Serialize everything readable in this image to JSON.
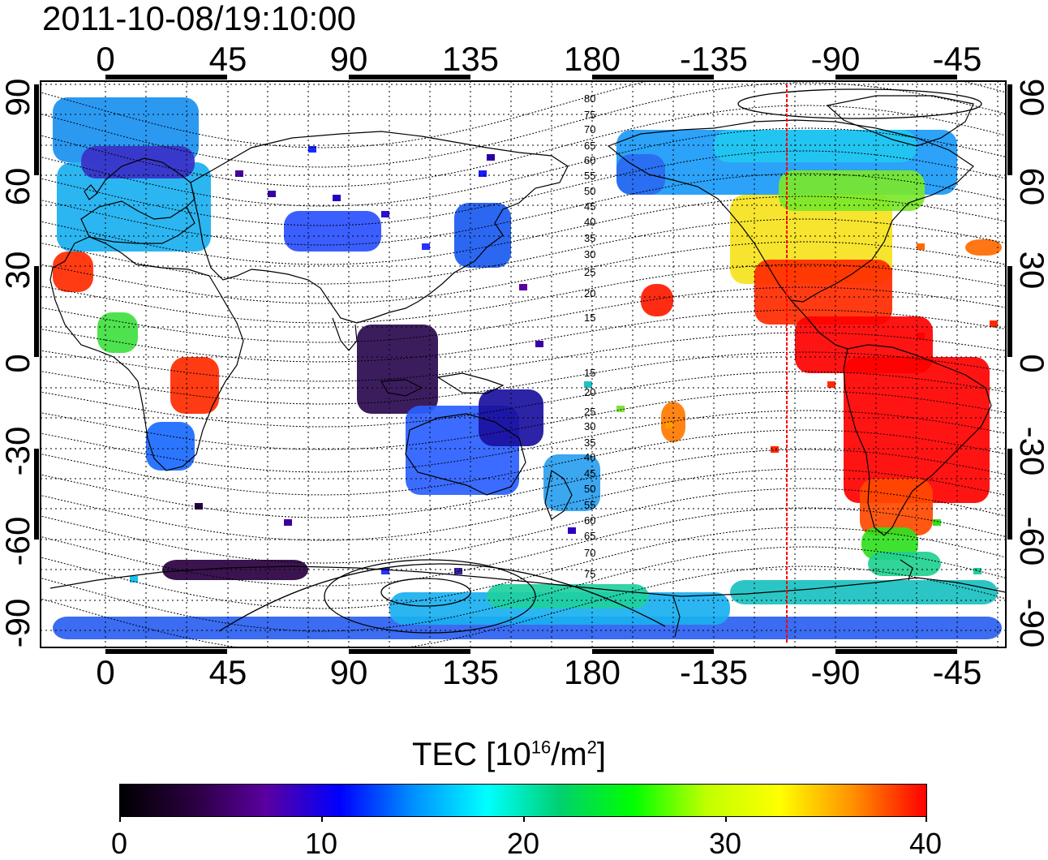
{
  "timestamp": "2011-10-08/19:10:00",
  "top_axis_labels": [
    "0",
    "45",
    "90",
    "135",
    "180",
    "-135",
    "-90",
    "-45"
  ],
  "bottom_axis_labels": [
    "0",
    "45",
    "90",
    "135",
    "180",
    "-135",
    "-90",
    "-45"
  ],
  "left_lat_labels": [
    "90",
    "60",
    "30",
    "0",
    "-30",
    "-60",
    "-90"
  ],
  "right_lat_labels": [
    "90",
    "60",
    "30",
    "0",
    "-30",
    "-60",
    "-90"
  ],
  "contour_labels": [
    "80",
    "75",
    "70",
    "65",
    "60",
    "55",
    "50",
    "45",
    "40",
    "35",
    "30",
    "25",
    "20",
    "15",
    "15",
    "20",
    "25",
    "30",
    "35",
    "40",
    "45",
    "50",
    "55",
    "60",
    "65",
    "70",
    "75"
  ],
  "colorbar": {
    "title_prefix": "TEC  [10",
    "title_exp1": "16",
    "title_mid": "/m",
    "title_exp2": "2",
    "title_suffix": "]",
    "ticks": [
      "0",
      "10",
      "20",
      "30",
      "40"
    ],
    "min": 0,
    "max": 40
  },
  "colors": {
    "terminator_line": "#ff0000",
    "scale": [
      "#000000",
      "#2a0040",
      "#5a00a0",
      "#0000ff",
      "#0090ff",
      "#00ffff",
      "#00d070",
      "#00ff00",
      "#c0ff00",
      "#ffff00",
      "#ff9000",
      "#ff0000"
    ]
  },
  "map": {
    "projection": "equirectangular",
    "lon_range": [
      -25,
      335
    ],
    "lat_range": [
      -90,
      90
    ],
    "terminator_lon": -110
  }
}
